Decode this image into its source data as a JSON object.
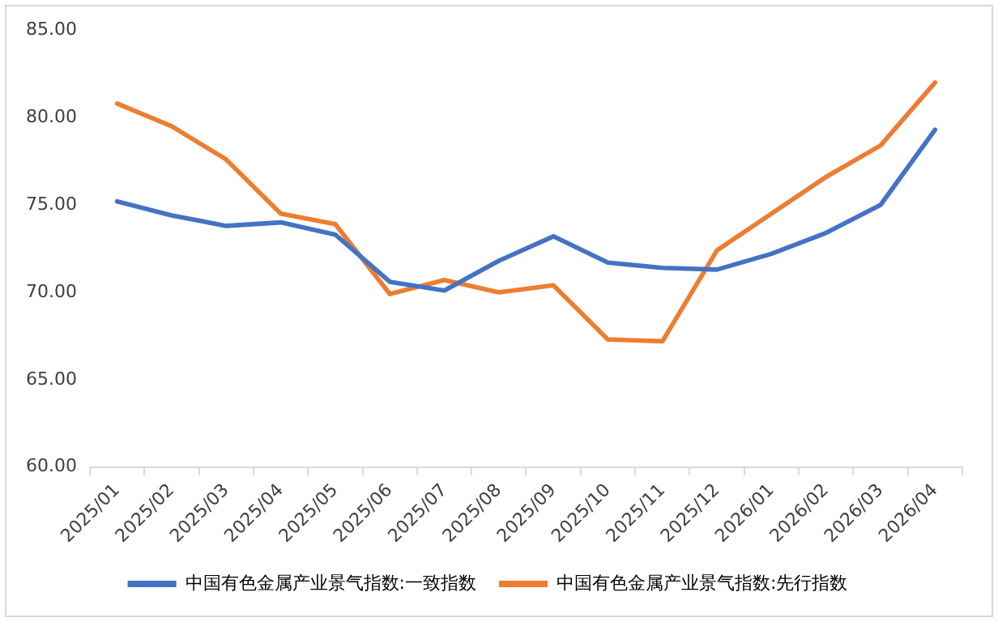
{
  "chart_data": {
    "type": "line",
    "categories": [
      "2025/01",
      "2025/02",
      "2025/03",
      "2025/04",
      "2025/05",
      "2025/06",
      "2025/07",
      "2025/08",
      "2025/09",
      "2025/10",
      "2025/11",
      "2025/12",
      "2026/01",
      "2026/02",
      "2026/03",
      "2026/04"
    ],
    "series": [
      {
        "name": "中国有色金属产业景气指数:一致指数",
        "color": "#4472c4",
        "values": [
          75.2,
          74.4,
          73.8,
          74.0,
          73.3,
          70.6,
          70.1,
          71.8,
          73.2,
          71.7,
          71.4,
          71.3,
          72.2,
          73.4,
          75.0,
          79.3
        ]
      },
      {
        "name": "中国有色金属产业景气指数:先行指数",
        "color": "#ed7d31",
        "values": [
          80.8,
          79.5,
          77.6,
          74.5,
          73.9,
          69.9,
          70.7,
          70.0,
          70.4,
          67.3,
          67.2,
          72.4,
          74.5,
          76.6,
          78.4,
          82.0
        ]
      }
    ],
    "ylim": [
      60,
      85
    ],
    "yticks": [
      {
        "value": 60,
        "label": "60.00"
      },
      {
        "value": 65,
        "label": "65.00"
      },
      {
        "value": 70,
        "label": "70.00"
      },
      {
        "value": 75,
        "label": "75.00"
      },
      {
        "value": 80,
        "label": "80.00"
      },
      {
        "value": 85,
        "label": "85.00"
      }
    ],
    "grid": false,
    "legend": "bottom",
    "marker": "none",
    "line_style": "solid"
  }
}
